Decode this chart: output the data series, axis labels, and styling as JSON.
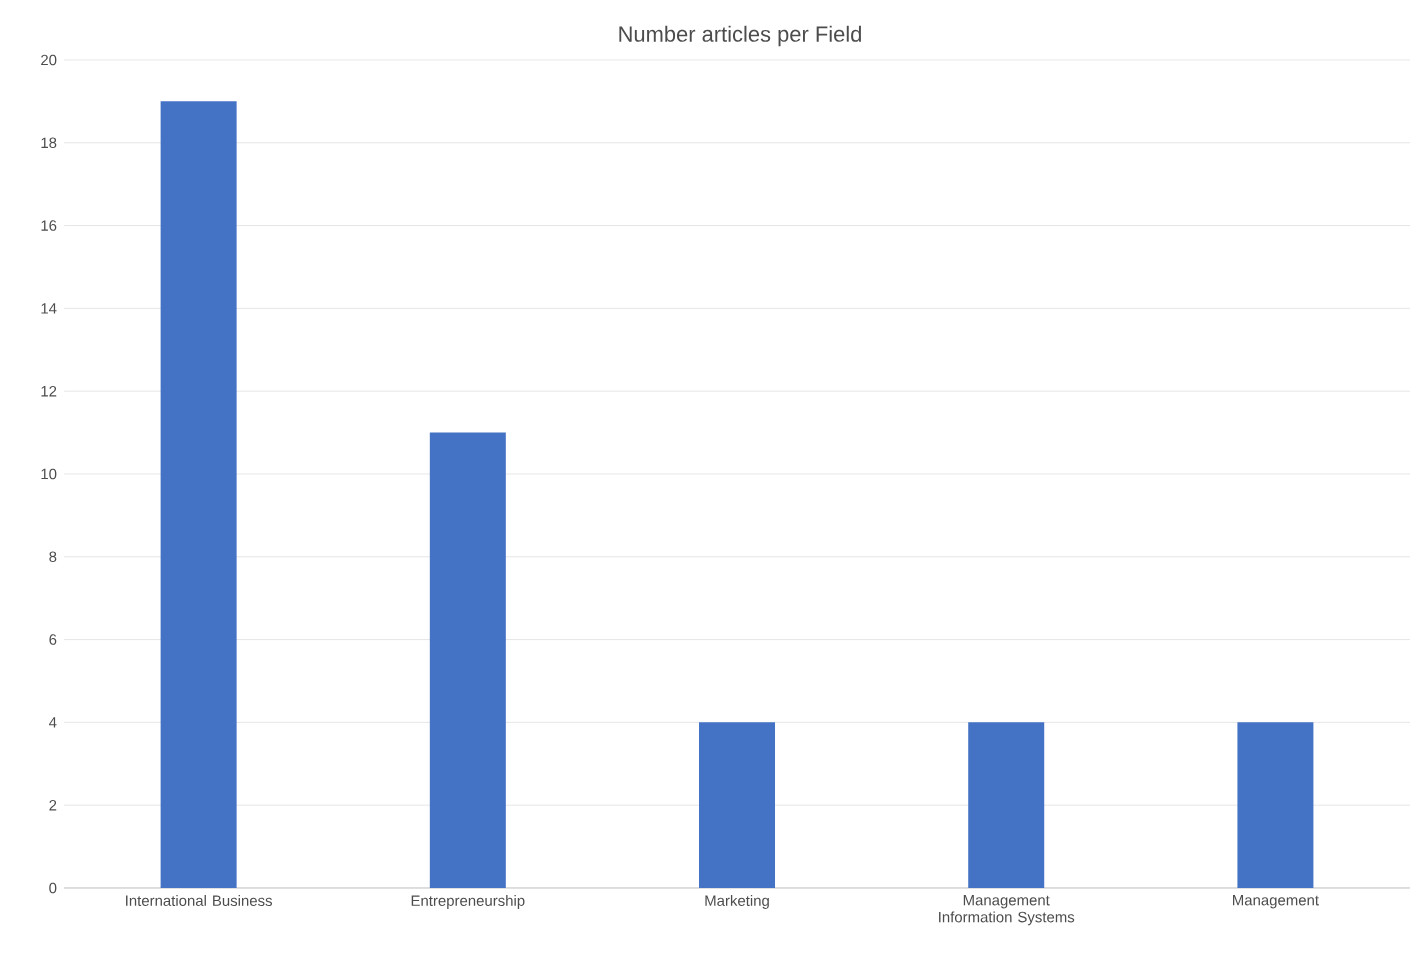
{
  "chart_data": {
    "type": "bar",
    "title": "Number articles per Field",
    "categories": [
      "International Business",
      "Entrepreneurship",
      "Marketing",
      "Management Information Systems",
      "Management"
    ],
    "values": [
      19,
      11,
      4,
      4,
      4
    ],
    "color": "#4472c4",
    "ylim": [
      0,
      20
    ],
    "yticks": [
      0,
      2,
      4,
      6,
      8,
      10,
      12,
      14,
      16,
      18,
      20
    ],
    "grid": "y"
  }
}
